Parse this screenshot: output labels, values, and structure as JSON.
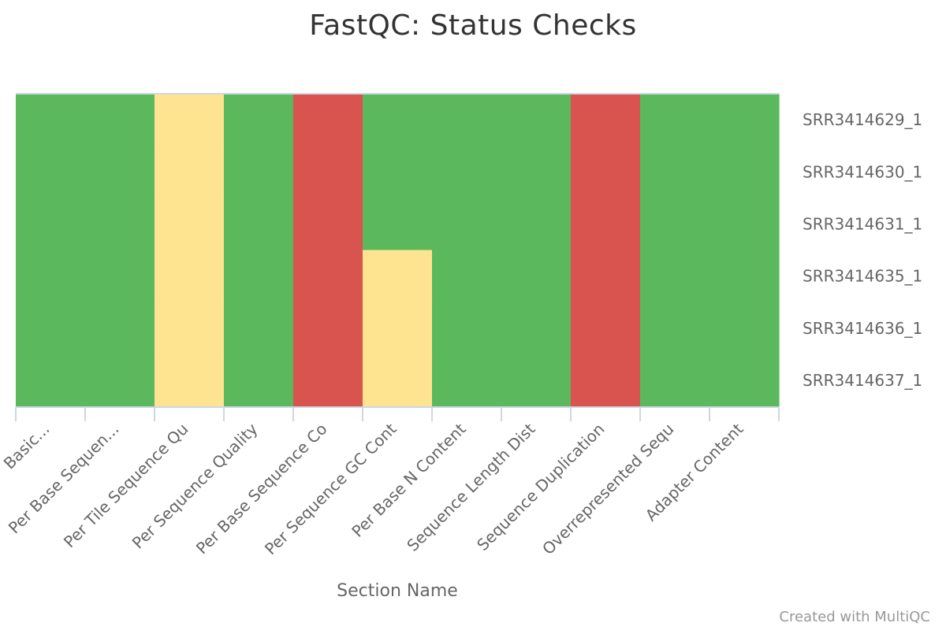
{
  "chart_data": {
    "type": "heatmap",
    "title": "FastQC: Status Checks",
    "xlabel": "Section Name",
    "ylabel": "",
    "categories": [
      "Basic...",
      "Per Base Sequen...",
      "Per Tile Sequence Qu",
      "Per Sequence Quality",
      "Per Base Sequence Co",
      "Per Sequence GC Cont",
      "Per Base N Content",
      "Sequence Length Dist",
      "Sequence Duplication",
      "Overrepresented Sequ",
      "Adapter Content"
    ],
    "rows": [
      "SRR3414629_1",
      "SRR3414630_1",
      "SRR3414631_1",
      "SRR3414635_1",
      "SRR3414636_1",
      "SRR3414637_1"
    ],
    "status_values": [
      [
        "pass",
        "pass",
        "warn",
        "pass",
        "fail",
        "pass",
        "pass",
        "pass",
        "fail",
        "pass",
        "pass"
      ],
      [
        "pass",
        "pass",
        "warn",
        "pass",
        "fail",
        "pass",
        "pass",
        "pass",
        "fail",
        "pass",
        "pass"
      ],
      [
        "pass",
        "pass",
        "warn",
        "pass",
        "fail",
        "pass",
        "pass",
        "pass",
        "fail",
        "pass",
        "pass"
      ],
      [
        "pass",
        "pass",
        "warn",
        "pass",
        "fail",
        "warn",
        "pass",
        "pass",
        "fail",
        "pass",
        "pass"
      ],
      [
        "pass",
        "pass",
        "warn",
        "pass",
        "fail",
        "warn",
        "pass",
        "pass",
        "fail",
        "pass",
        "pass"
      ],
      [
        "pass",
        "pass",
        "warn",
        "pass",
        "fail",
        "warn",
        "pass",
        "pass",
        "fail",
        "pass",
        "pass"
      ]
    ],
    "colors": {
      "pass": "#5cb85c",
      "warn": "#fee391",
      "fail": "#d9534f"
    },
    "legend": "none",
    "grid": false
  },
  "footer": {
    "credit": "Created with MultiQC"
  }
}
